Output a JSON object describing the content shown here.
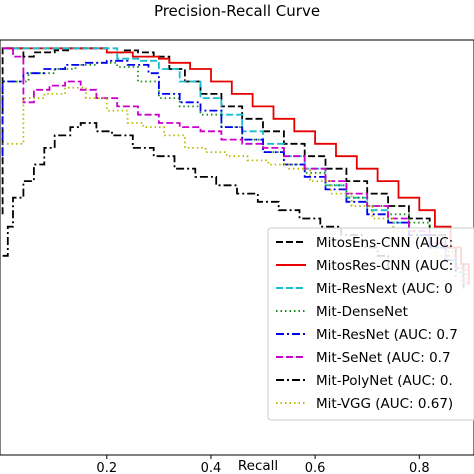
{
  "chart_data": {
    "type": "line",
    "title": "Precision-Recall Curve",
    "xlabel": "Recall",
    "ylabel": "",
    "xlim": [
      -0.005,
      0.905
    ],
    "ylim": [
      0.0,
      1.0
    ],
    "x_ticks": [
      0.2,
      0.4,
      0.6,
      0.8
    ],
    "x_tick_labels": [
      "0.2",
      "0.4",
      "0.6",
      "0.8"
    ],
    "grid": false,
    "legend_placement": "lower-right",
    "series": [
      {
        "name": "MitosEns-CNN (AUC:",
        "color": "#000000",
        "style": "dashed",
        "points": [
          [
            0.0,
            0.58
          ],
          [
            0.0,
            0.98
          ],
          [
            0.02,
            0.98
          ],
          [
            0.04,
            0.96
          ],
          [
            0.06,
            0.97
          ],
          [
            0.08,
            0.97
          ],
          [
            0.1,
            0.975
          ],
          [
            0.13,
            0.98
          ],
          [
            0.17,
            0.98
          ],
          [
            0.2,
            0.97
          ],
          [
            0.23,
            0.975
          ],
          [
            0.26,
            0.97
          ],
          [
            0.29,
            0.96
          ],
          [
            0.32,
            0.93
          ],
          [
            0.35,
            0.9
          ],
          [
            0.38,
            0.87
          ],
          [
            0.42,
            0.84
          ],
          [
            0.46,
            0.81
          ],
          [
            0.5,
            0.78
          ],
          [
            0.54,
            0.75
          ],
          [
            0.58,
            0.72
          ],
          [
            0.62,
            0.69
          ],
          [
            0.66,
            0.66
          ],
          [
            0.7,
            0.63
          ],
          [
            0.74,
            0.6
          ],
          [
            0.78,
            0.57
          ],
          [
            0.82,
            0.53
          ],
          [
            0.85,
            0.5
          ],
          [
            0.87,
            0.46
          ],
          [
            0.885,
            0.4
          ]
        ]
      },
      {
        "name": "MitosRes-CNN (AUC:",
        "color": "#e60000",
        "style": "solid",
        "points": [
          [
            0.0,
            0.98
          ],
          [
            0.13,
            0.98
          ],
          [
            0.2,
            0.97
          ],
          [
            0.25,
            0.96
          ],
          [
            0.3,
            0.955
          ],
          [
            0.32,
            0.945
          ],
          [
            0.36,
            0.93
          ],
          [
            0.4,
            0.9
          ],
          [
            0.44,
            0.87
          ],
          [
            0.48,
            0.84
          ],
          [
            0.52,
            0.81
          ],
          [
            0.56,
            0.78
          ],
          [
            0.6,
            0.75
          ],
          [
            0.64,
            0.72
          ],
          [
            0.68,
            0.69
          ],
          [
            0.72,
            0.66
          ],
          [
            0.76,
            0.62
          ],
          [
            0.8,
            0.59
          ],
          [
            0.83,
            0.55
          ],
          [
            0.86,
            0.5
          ],
          [
            0.88,
            0.46
          ],
          [
            0.895,
            0.41
          ]
        ]
      },
      {
        "name": "Mit-ResNext (AUC: 0",
        "color": "#17becf",
        "style": "dashed",
        "points": [
          [
            0.0,
            0.98
          ],
          [
            0.22,
            0.98
          ],
          [
            0.22,
            0.955
          ],
          [
            0.26,
            0.95
          ],
          [
            0.3,
            0.93
          ],
          [
            0.34,
            0.9
          ],
          [
            0.38,
            0.86
          ],
          [
            0.42,
            0.82
          ],
          [
            0.46,
            0.78
          ],
          [
            0.5,
            0.75
          ],
          [
            0.54,
            0.72
          ],
          [
            0.58,
            0.69
          ],
          [
            0.62,
            0.65
          ],
          [
            0.66,
            0.62
          ],
          [
            0.7,
            0.59
          ],
          [
            0.74,
            0.56
          ],
          [
            0.78,
            0.53
          ],
          [
            0.82,
            0.5
          ],
          [
            0.85,
            0.47
          ],
          [
            0.87,
            0.44
          ],
          [
            0.885,
            0.4
          ]
        ]
      },
      {
        "name": "Mit-DenseNet",
        "color": "#1a8a1a",
        "style": "dotted",
        "points": [
          [
            0.0,
            0.9
          ],
          [
            0.05,
            0.92
          ],
          [
            0.1,
            0.93
          ],
          [
            0.14,
            0.94
          ],
          [
            0.18,
            0.945
          ],
          [
            0.22,
            0.935
          ],
          [
            0.26,
            0.9
          ],
          [
            0.3,
            0.86
          ],
          [
            0.34,
            0.84
          ],
          [
            0.38,
            0.82
          ],
          [
            0.42,
            0.79
          ],
          [
            0.46,
            0.76
          ],
          [
            0.5,
            0.73
          ],
          [
            0.54,
            0.7
          ],
          [
            0.58,
            0.68
          ],
          [
            0.62,
            0.65
          ],
          [
            0.66,
            0.62
          ],
          [
            0.7,
            0.6
          ],
          [
            0.74,
            0.58
          ],
          [
            0.78,
            0.56
          ],
          [
            0.82,
            0.53
          ],
          [
            0.85,
            0.49
          ],
          [
            0.87,
            0.45
          ],
          [
            0.89,
            0.41
          ]
        ]
      },
      {
        "name": "Mit-ResNet (AUC: 0.7",
        "color": "#0000ee",
        "style": "dashdot",
        "points": [
          [
            0.0,
            0.72
          ],
          [
            0.0,
            0.9
          ],
          [
            0.04,
            0.92
          ],
          [
            0.08,
            0.93
          ],
          [
            0.12,
            0.94
          ],
          [
            0.16,
            0.945
          ],
          [
            0.2,
            0.95
          ],
          [
            0.24,
            0.94
          ],
          [
            0.28,
            0.92
          ],
          [
            0.3,
            0.87
          ],
          [
            0.34,
            0.85
          ],
          [
            0.38,
            0.83
          ],
          [
            0.42,
            0.79
          ],
          [
            0.46,
            0.76
          ],
          [
            0.5,
            0.73
          ],
          [
            0.54,
            0.7
          ],
          [
            0.58,
            0.67
          ],
          [
            0.62,
            0.64
          ],
          [
            0.66,
            0.61
          ],
          [
            0.7,
            0.58
          ],
          [
            0.74,
            0.56
          ],
          [
            0.78,
            0.53
          ],
          [
            0.82,
            0.5
          ],
          [
            0.85,
            0.47
          ],
          [
            0.87,
            0.43
          ]
        ]
      },
      {
        "name": "Mit-SeNet (AUC: 0.7",
        "color": "#cc00cc",
        "style": "dashed",
        "points": [
          [
            0.0,
            0.98
          ],
          [
            0.02,
            0.96
          ],
          [
            0.04,
            0.85
          ],
          [
            0.06,
            0.88
          ],
          [
            0.09,
            0.89
          ],
          [
            0.12,
            0.9
          ],
          [
            0.15,
            0.88
          ],
          [
            0.18,
            0.86
          ],
          [
            0.22,
            0.84
          ],
          [
            0.26,
            0.82
          ],
          [
            0.3,
            0.8
          ],
          [
            0.34,
            0.79
          ],
          [
            0.38,
            0.78
          ],
          [
            0.42,
            0.76
          ],
          [
            0.46,
            0.75
          ],
          [
            0.5,
            0.74
          ],
          [
            0.54,
            0.72
          ],
          [
            0.58,
            0.69
          ],
          [
            0.62,
            0.66
          ],
          [
            0.66,
            0.63
          ],
          [
            0.7,
            0.6
          ],
          [
            0.74,
            0.57
          ],
          [
            0.78,
            0.54
          ],
          [
            0.82,
            0.51
          ],
          [
            0.85,
            0.48
          ],
          [
            0.87,
            0.45
          ],
          [
            0.885,
            0.41
          ]
        ]
      },
      {
        "name": "Mit-PolyNet (AUC: 0.",
        "color": "#000000",
        "style": "dashdot",
        "points": [
          [
            0.0,
            0.48
          ],
          [
            0.01,
            0.55
          ],
          [
            0.02,
            0.62
          ],
          [
            0.04,
            0.66
          ],
          [
            0.06,
            0.7
          ],
          [
            0.08,
            0.74
          ],
          [
            0.1,
            0.77
          ],
          [
            0.13,
            0.79
          ],
          [
            0.15,
            0.8
          ],
          [
            0.18,
            0.78
          ],
          [
            0.21,
            0.77
          ],
          [
            0.25,
            0.74
          ],
          [
            0.29,
            0.72
          ],
          [
            0.33,
            0.69
          ],
          [
            0.37,
            0.67
          ],
          [
            0.41,
            0.65
          ],
          [
            0.45,
            0.63
          ],
          [
            0.49,
            0.61
          ],
          [
            0.53,
            0.59
          ],
          [
            0.57,
            0.57
          ],
          [
            0.61,
            0.55
          ],
          [
            0.65,
            0.53
          ],
          [
            0.69,
            0.5
          ],
          [
            0.72,
            0.48
          ],
          [
            0.74,
            0.45
          ]
        ]
      },
      {
        "name": "Mit-VGG (AUC: 0.67)",
        "color": "#b8b800",
        "style": "dotted",
        "points": [
          [
            0.0,
            0.75
          ],
          [
            0.04,
            0.86
          ],
          [
            0.08,
            0.87
          ],
          [
            0.12,
            0.885
          ],
          [
            0.16,
            0.86
          ],
          [
            0.2,
            0.83
          ],
          [
            0.24,
            0.8
          ],
          [
            0.27,
            0.79
          ],
          [
            0.31,
            0.77
          ],
          [
            0.35,
            0.74
          ],
          [
            0.39,
            0.73
          ],
          [
            0.43,
            0.72
          ],
          [
            0.47,
            0.71
          ],
          [
            0.51,
            0.7
          ],
          [
            0.55,
            0.69
          ],
          [
            0.59,
            0.66
          ],
          [
            0.63,
            0.63
          ],
          [
            0.67,
            0.6
          ],
          [
            0.71,
            0.57
          ],
          [
            0.75,
            0.54
          ],
          [
            0.79,
            0.51
          ],
          [
            0.83,
            0.48
          ],
          [
            0.86,
            0.45
          ],
          [
            0.88,
            0.41
          ]
        ]
      }
    ]
  }
}
